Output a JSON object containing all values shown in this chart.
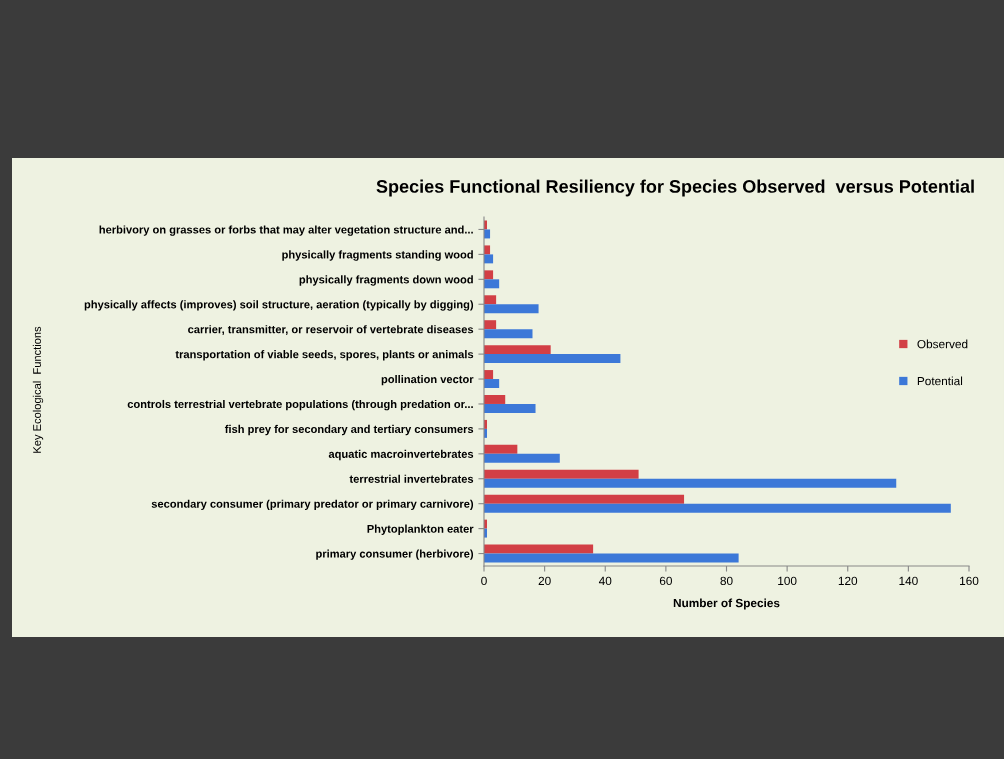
{
  "chart_data": {
    "type": "bar",
    "orientation": "horizontal",
    "title": "Species Functional Resiliency for Species Observed  versus Potential",
    "xlabel": "Number of Species",
    "ylabel": "Key Ecological  Functions",
    "categories": [
      "herbivory on grasses or forbs that may alter vegetation structure and...",
      "physically fragments standing wood",
      "physically fragments down wood",
      "physically affects (improves) soil structure, aeration (typically by digging)",
      "carrier, transmitter, or reservoir of vertebrate diseases",
      "transportation of viable seeds, spores, plants or animals",
      "pollination vector",
      "controls terrestrial vertebrate populations (through predation or...",
      "fish prey for secondary and tertiary consumers",
      "aquatic macroinvertebrates",
      "terrestrial invertebrates",
      "secondary consumer (primary predator or primary carnivore)",
      "Phytoplankton eater",
      "primary consumer (herbivore)"
    ],
    "series": [
      {
        "name": "Observed",
        "color": "#d23f45",
        "values": [
          1,
          2,
          3,
          4,
          4,
          22,
          3,
          7,
          1,
          11,
          51,
          66,
          1,
          36
        ]
      },
      {
        "name": "Potential",
        "color": "#3c78d8",
        "values": [
          2,
          3,
          5,
          18,
          16,
          45,
          5,
          17,
          1,
          25,
          136,
          154,
          1,
          84
        ]
      }
    ],
    "xlim": [
      0,
      160
    ],
    "xticks": [
      0,
      20,
      40,
      60,
      80,
      100,
      120,
      140,
      160
    ],
    "legend": "right",
    "grid": false
  }
}
